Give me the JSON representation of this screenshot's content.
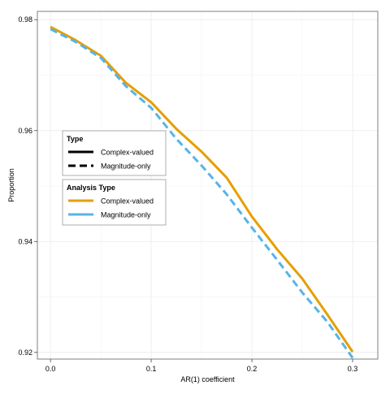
{
  "chart_data": {
    "type": "line",
    "xlabel": "AR(1) coefficient",
    "ylabel": "Proportion",
    "xlim": [
      -0.013,
      0.325
    ],
    "ylim": [
      0.9188,
      0.9815
    ],
    "x_ticks": [
      0.0,
      0.1,
      0.2,
      0.3
    ],
    "x_tick_labels": [
      "0.0",
      "0.1",
      "0.2",
      "0.3"
    ],
    "y_ticks": [
      0.92,
      0.94,
      0.96,
      0.98
    ],
    "y_tick_labels": [
      "0.92",
      "0.94",
      "0.96",
      "0.98"
    ],
    "grid": true,
    "legend_placement": "left-center",
    "legends": [
      {
        "title": "Type",
        "entries": [
          {
            "label": "Complex-valued",
            "color": "#000000",
            "dash": "solid"
          },
          {
            "label": "Magnitude-only",
            "color": "#000000",
            "dash": "dashed"
          }
        ]
      },
      {
        "title": "Analysis Type",
        "entries": [
          {
            "label": "Complex-valued",
            "color": "#E69F00",
            "dash": "solid"
          },
          {
            "label": "Magnitude-only",
            "color": "#56B4E9",
            "dash": "solid"
          }
        ]
      }
    ],
    "series": [
      {
        "name": "Complex-valued",
        "color": "#E69F00",
        "dash": "solid",
        "x": [
          0.0,
          0.025,
          0.05,
          0.075,
          0.1,
          0.125,
          0.15,
          0.175,
          0.2,
          0.225,
          0.25,
          0.275,
          0.3
        ],
        "y": [
          0.9787,
          0.9763,
          0.9735,
          0.9686,
          0.9651,
          0.9603,
          0.9562,
          0.9515,
          0.9445,
          0.9386,
          0.9333,
          0.9268,
          0.9201
        ]
      },
      {
        "name": "Magnitude-only",
        "color": "#56B4E9",
        "dash": "dashed",
        "x": [
          0.0,
          0.025,
          0.05,
          0.075,
          0.1,
          0.125,
          0.15,
          0.175,
          0.2,
          0.225,
          0.25,
          0.275,
          0.3
        ],
        "y": [
          0.9783,
          0.976,
          0.9731,
          0.968,
          0.9641,
          0.9585,
          0.9537,
          0.9485,
          0.9425,
          0.9367,
          0.9308,
          0.9255,
          0.919
        ]
      }
    ]
  }
}
